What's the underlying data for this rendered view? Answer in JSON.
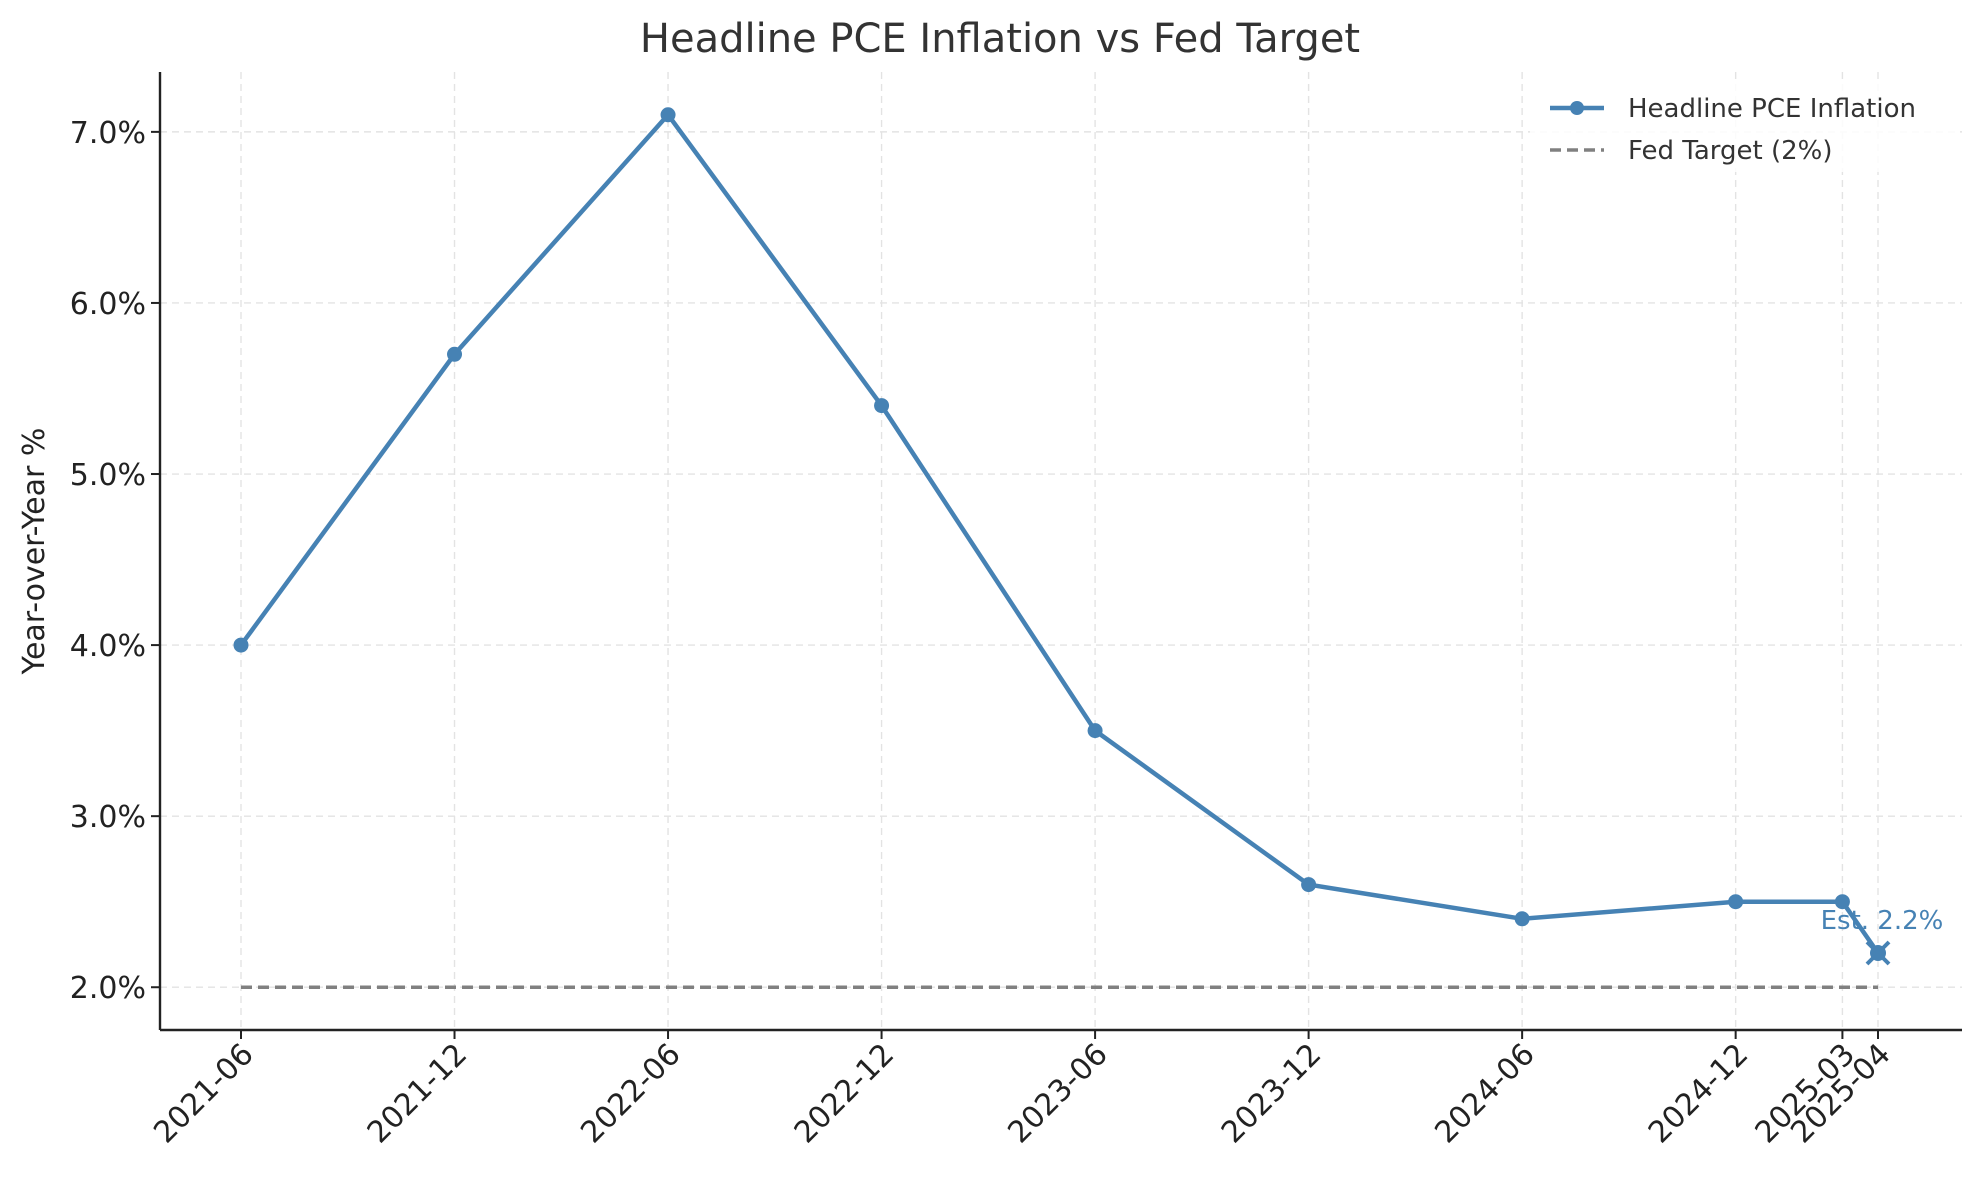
{
  "chart_data": {
    "type": "line",
    "title": "Headline PCE Inflation vs Fed Target",
    "xlabel": "",
    "ylabel": "Year-over-Year %",
    "x": [
      "2021-06",
      "2021-12",
      "2022-06",
      "2022-12",
      "2023-06",
      "2023-12",
      "2024-06",
      "2024-12",
      "2025-03",
      "2025-04"
    ],
    "x_tick_labels": [
      "2021-06",
      "2021-12",
      "2022-06",
      "2022-12",
      "2023-06",
      "2023-12",
      "2024-06",
      "2024-12",
      "2025-03",
      "2025-04"
    ],
    "ylim": [
      1.75,
      7.35
    ],
    "y_ticks": [
      2.0,
      3.0,
      4.0,
      5.0,
      6.0,
      7.0
    ],
    "y_tick_labels": [
      "2.0%",
      "3.0%",
      "4.0%",
      "5.0%",
      "6.0%",
      "7.0%"
    ],
    "grid": true,
    "legend_position": "top-right",
    "series": [
      {
        "name": "Headline PCE Inflation",
        "style": "solid-line-with-circle-markers",
        "color": "#4682b4",
        "x": [
          "2021-06",
          "2021-12",
          "2022-06",
          "2022-12",
          "2023-06",
          "2023-12",
          "2024-06",
          "2024-12",
          "2025-03",
          "2025-04"
        ],
        "values": [
          4.0,
          5.7,
          7.1,
          5.4,
          3.5,
          2.6,
          2.4,
          2.5,
          2.5,
          2.2
        ],
        "estimate_marker": "x"
      },
      {
        "name": "Fed Target (2%)",
        "style": "dashed",
        "color": "#808080",
        "x": [
          "2021-06",
          "2025-04"
        ],
        "values": [
          2.0,
          2.0
        ]
      }
    ],
    "annotations": [
      {
        "text": "Est. 2.2%",
        "x": "2025-04",
        "y": 2.2,
        "color": "#4682b4"
      }
    ]
  }
}
